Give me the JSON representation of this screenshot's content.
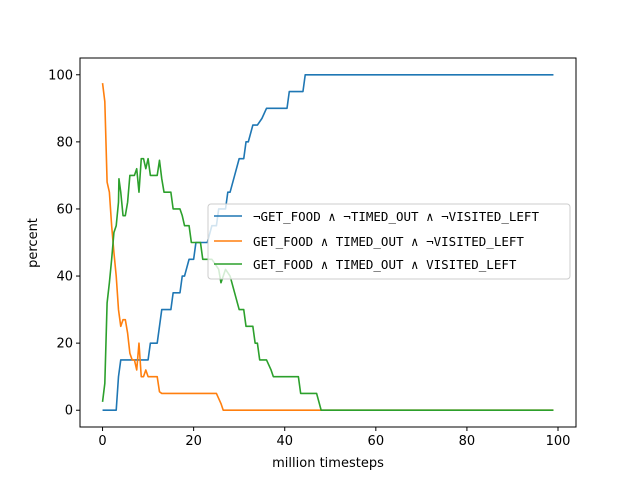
{
  "chart_data": {
    "type": "line",
    "xlabel": "million timesteps",
    "ylabel": "percent",
    "xlim": [
      -4.95,
      103.95
    ],
    "ylim": [
      -5,
      105
    ],
    "xticks": [
      0,
      20,
      40,
      60,
      80,
      100
    ],
    "yticks": [
      0,
      20,
      40,
      60,
      80,
      100
    ],
    "grid": false,
    "legend_position": "center-right",
    "series": [
      {
        "name": "¬GET_FOOD ∧ ¬TIMED_OUT ∧ ¬VISITED_LEFT",
        "color": "#1f77b4",
        "points": [
          [
            0,
            0
          ],
          [
            1,
            0
          ],
          [
            2,
            0
          ],
          [
            3,
            0
          ],
          [
            3.5,
            10
          ],
          [
            4,
            15
          ],
          [
            5,
            15
          ],
          [
            6,
            15
          ],
          [
            7,
            15
          ],
          [
            8,
            15
          ],
          [
            9,
            15
          ],
          [
            10,
            15
          ],
          [
            10.5,
            20
          ],
          [
            12,
            20
          ],
          [
            12.5,
            25
          ],
          [
            13,
            30
          ],
          [
            14,
            30
          ],
          [
            15,
            30
          ],
          [
            15.5,
            35
          ],
          [
            17,
            35
          ],
          [
            17.5,
            40
          ],
          [
            18,
            40
          ],
          [
            19,
            45
          ],
          [
            20,
            45
          ],
          [
            20.5,
            50
          ],
          [
            22,
            50
          ],
          [
            23,
            50
          ],
          [
            24,
            55
          ],
          [
            25,
            55
          ],
          [
            25.5,
            60
          ],
          [
            27,
            60
          ],
          [
            27.5,
            65
          ],
          [
            28,
            65
          ],
          [
            29,
            70
          ],
          [
            30,
            75
          ],
          [
            31,
            75
          ],
          [
            31.5,
            80
          ],
          [
            32,
            80
          ],
          [
            33,
            85
          ],
          [
            34,
            85
          ],
          [
            35,
            87
          ],
          [
            36,
            90
          ],
          [
            40,
            90
          ],
          [
            40.5,
            90
          ],
          [
            41,
            95
          ],
          [
            43,
            95
          ],
          [
            44,
            95
          ],
          [
            44.5,
            100
          ],
          [
            48,
            100
          ],
          [
            99,
            100
          ]
        ]
      },
      {
        "name": "GET_FOOD ∧ TIMED_OUT ∧ ¬VISITED_LEFT",
        "color": "#ff7f0e",
        "points": [
          [
            0,
            97.5
          ],
          [
            0.5,
            92
          ],
          [
            1,
            68
          ],
          [
            1.5,
            65
          ],
          [
            2,
            55
          ],
          [
            2.5,
            47
          ],
          [
            3,
            40
          ],
          [
            3.5,
            30
          ],
          [
            4,
            25
          ],
          [
            4.5,
            27
          ],
          [
            5,
            27
          ],
          [
            5.5,
            23
          ],
          [
            6,
            17
          ],
          [
            6.5,
            15
          ],
          [
            7,
            15
          ],
          [
            7.5,
            12
          ],
          [
            8,
            20
          ],
          [
            8.5,
            10
          ],
          [
            9,
            10
          ],
          [
            9.5,
            12
          ],
          [
            10,
            10
          ],
          [
            11,
            10
          ],
          [
            12,
            10
          ],
          [
            12.5,
            5.5
          ],
          [
            13,
            5
          ],
          [
            20,
            5
          ],
          [
            24,
            5
          ],
          [
            25,
            5
          ],
          [
            26,
            2
          ],
          [
            26.5,
            0
          ],
          [
            48,
            0
          ],
          [
            99,
            0
          ]
        ]
      },
      {
        "name": "GET_FOOD ∧ TIMED_OUT ∧ VISITED_LEFT",
        "color": "#2ca02c",
        "points": [
          [
            0,
            2.5
          ],
          [
            0.5,
            8
          ],
          [
            1,
            32
          ],
          [
            1.5,
            38
          ],
          [
            2,
            45
          ],
          [
            2.5,
            53
          ],
          [
            3,
            55
          ],
          [
            3.5,
            62
          ],
          [
            3.6,
            69
          ],
          [
            4,
            65
          ],
          [
            4.5,
            58
          ],
          [
            5,
            58
          ],
          [
            5.5,
            62
          ],
          [
            6,
            70
          ],
          [
            7,
            70
          ],
          [
            7.5,
            72
          ],
          [
            8,
            65
          ],
          [
            8.5,
            75
          ],
          [
            9,
            75
          ],
          [
            9.5,
            72
          ],
          [
            10,
            75
          ],
          [
            10.5,
            70
          ],
          [
            11,
            70
          ],
          [
            12,
            70
          ],
          [
            12.5,
            74.5
          ],
          [
            13,
            69
          ],
          [
            13.5,
            65
          ],
          [
            15,
            65
          ],
          [
            15.5,
            60
          ],
          [
            17,
            60
          ],
          [
            17.5,
            58
          ],
          [
            18,
            55
          ],
          [
            19,
            55
          ],
          [
            19.5,
            50
          ],
          [
            21,
            50
          ],
          [
            21.5,
            50
          ],
          [
            22,
            45
          ],
          [
            23,
            45
          ],
          [
            24,
            45
          ],
          [
            25,
            43
          ],
          [
            25.5,
            42
          ],
          [
            26,
            38
          ],
          [
            27,
            42
          ],
          [
            28,
            40
          ],
          [
            29,
            35
          ],
          [
            30,
            30
          ],
          [
            31,
            30
          ],
          [
            31.5,
            25
          ],
          [
            33,
            25
          ],
          [
            33.5,
            20
          ],
          [
            34,
            20
          ],
          [
            34.5,
            15
          ],
          [
            36,
            15
          ],
          [
            37,
            12
          ],
          [
            37.5,
            10
          ],
          [
            43,
            10
          ],
          [
            43.5,
            5
          ],
          [
            45,
            5
          ],
          [
            47,
            5
          ],
          [
            48,
            0
          ],
          [
            99,
            0
          ]
        ]
      }
    ]
  }
}
